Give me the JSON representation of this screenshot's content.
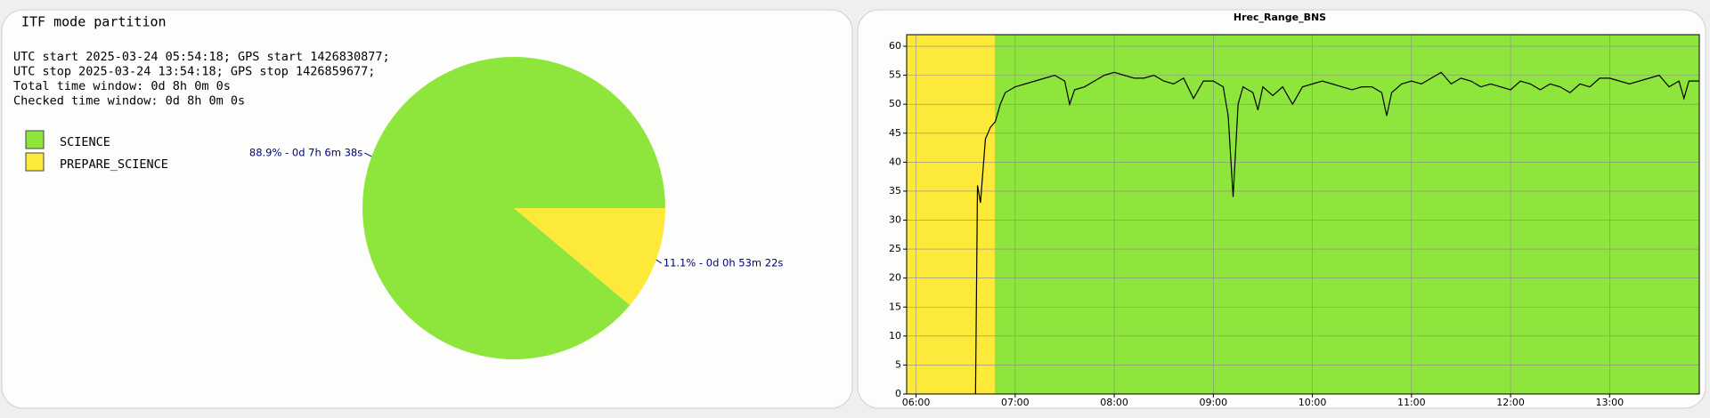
{
  "chart_data": [
    {
      "type": "pie",
      "title": "ITF mode partition",
      "info_lines": [
        "UTC start 2025-03-24 05:54:18; GPS start 1426830877;",
        "UTC stop 2025-03-24 13:54:18; GPS stop 1426859677;",
        "Total time window: 0d 8h 0m 0s",
        "Checked time window: 0d 8h 0m 0s"
      ],
      "categories": [
        "SCIENCE",
        "PREPARE_SCIENCE"
      ],
      "values": [
        88.9,
        11.1
      ],
      "value_labels": [
        "88.9% - 0d 7h 6m 38s",
        "11.1% - 0d 0h 53m 22s"
      ],
      "colors": [
        "#8ee63c",
        "#fde93a"
      ]
    },
    {
      "type": "line",
      "title": "Hrec_Range_BNS",
      "x": [
        6.6,
        6.62,
        6.65,
        6.7,
        6.75,
        6.8,
        6.85,
        6.9,
        7.0,
        7.1,
        7.2,
        7.3,
        7.4,
        7.5,
        7.55,
        7.6,
        7.7,
        7.8,
        7.9,
        8.0,
        8.1,
        8.2,
        8.3,
        8.4,
        8.5,
        8.6,
        8.7,
        8.8,
        8.9,
        9.0,
        9.1,
        9.15,
        9.2,
        9.25,
        9.3,
        9.4,
        9.45,
        9.5,
        9.6,
        9.7,
        9.8,
        9.9,
        10.0,
        10.1,
        10.2,
        10.3,
        10.4,
        10.5,
        10.6,
        10.7,
        10.75,
        10.8,
        10.9,
        11.0,
        11.1,
        11.2,
        11.3,
        11.4,
        11.5,
        11.6,
        11.7,
        11.8,
        11.9,
        12.0,
        12.1,
        12.2,
        12.3,
        12.4,
        12.5,
        12.6,
        12.7,
        12.8,
        12.9,
        13.0,
        13.1,
        13.2,
        13.3,
        13.4,
        13.5,
        13.6,
        13.7,
        13.75,
        13.8,
        13.9
      ],
      "values": [
        0,
        36,
        33,
        44,
        46,
        47,
        50,
        52,
        53,
        53.5,
        54,
        54.5,
        55,
        54,
        50,
        52.5,
        53,
        54,
        55,
        55.5,
        55,
        54.5,
        54.5,
        55,
        54,
        53.5,
        54.5,
        51,
        54,
        54,
        53,
        48,
        34,
        50,
        53,
        52,
        49,
        53,
        51.5,
        53,
        50,
        53,
        53.5,
        54,
        53.5,
        53,
        52.5,
        53,
        53,
        52,
        48,
        52,
        53.5,
        54,
        53.5,
        54.5,
        55.5,
        53.5,
        54.5,
        54,
        53,
        53.5,
        53,
        52.5,
        54,
        53.5,
        52.5,
        53.5,
        53,
        52,
        53.5,
        53,
        54.5,
        54.5,
        54,
        53.5,
        54,
        54.5,
        55,
        53,
        54,
        51,
        54,
        54
      ],
      "color": "#000000",
      "bands": [
        {
          "from": 5.905,
          "to": 6.795,
          "color": "#fde93a"
        },
        {
          "from": 6.795,
          "to": 13.905,
          "color": "#8ee63c"
        }
      ],
      "xlim": [
        5.905,
        13.905
      ],
      "xticks": [
        {
          "value": 6,
          "label": "06:00"
        },
        {
          "value": 7,
          "label": "07:00"
        },
        {
          "value": 8,
          "label": "08:00"
        },
        {
          "value": 9,
          "label": "09:00"
        },
        {
          "value": 10,
          "label": "10:00"
        },
        {
          "value": 11,
          "label": "11:00"
        },
        {
          "value": 12,
          "label": "12:00"
        },
        {
          "value": 13,
          "label": "13:00"
        }
      ],
      "ylim": [
        0,
        62
      ],
      "yticks": [
        0,
        5,
        10,
        15,
        20,
        25,
        30,
        35,
        40,
        45,
        50,
        55,
        60
      ],
      "grid": true
    }
  ]
}
